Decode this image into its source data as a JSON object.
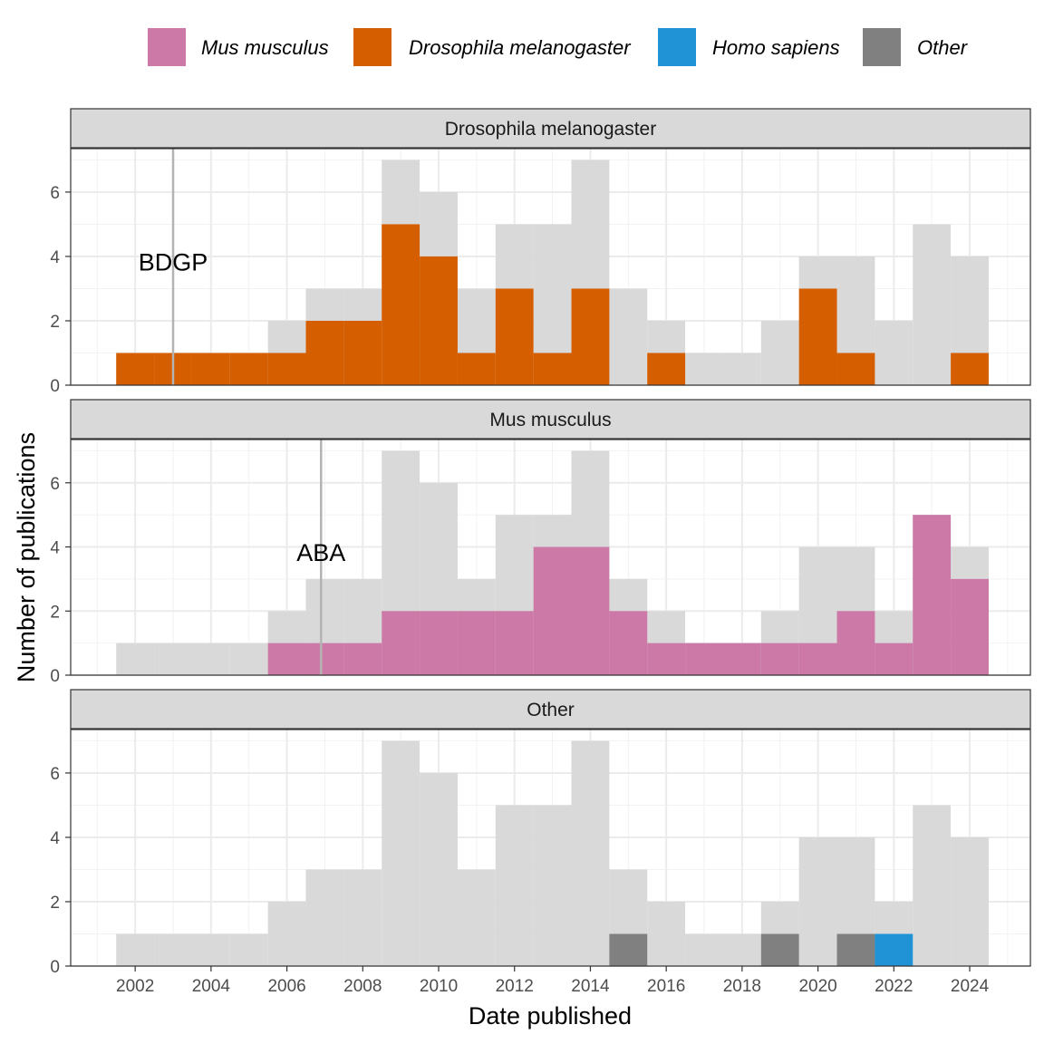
{
  "chart_data": {
    "type": "bar",
    "subtype": "faceted histogram",
    "xlabel": "Date published",
    "ylabel": "Number of publications",
    "xlim": [
      2000.3,
      2025.6
    ],
    "ylim": [
      0,
      7.35
    ],
    "x_ticks": [
      2002,
      2004,
      2006,
      2008,
      2010,
      2012,
      2014,
      2016,
      2018,
      2020,
      2022,
      2024
    ],
    "y_ticks": [
      0,
      2,
      4,
      6
    ],
    "grid": true,
    "legend_position": "top",
    "legend": [
      {
        "label": "Mus musculus",
        "color": "#CC79A7"
      },
      {
        "label": "Drosophila melanogaster",
        "color": "#D55E00"
      },
      {
        "label": "Homo sapiens",
        "color": "#1F93D6"
      },
      {
        "label": "Other",
        "color": "#808080"
      }
    ],
    "background_series": {
      "color": "#D9D9D9",
      "years": [
        2002,
        2003,
        2004,
        2005,
        2006,
        2007,
        2008,
        2009,
        2010,
        2011,
        2012,
        2013,
        2014,
        2015,
        2016,
        2017,
        2018,
        2019,
        2020,
        2021,
        2022,
        2023,
        2024
      ],
      "values": [
        1,
        1,
        1,
        1,
        2,
        3,
        3,
        7,
        6,
        3,
        5,
        5,
        7,
        3,
        2,
        1,
        1,
        2,
        4,
        4,
        2,
        5,
        4
      ]
    },
    "panels": [
      {
        "strip": "Drosophila melanogaster",
        "annotation": {
          "label": "BDGP",
          "x": 2003
        },
        "series": [
          {
            "name": "Drosophila melanogaster",
            "color": "#D55E00",
            "years": [
              2002,
              2003,
              2004,
              2005,
              2006,
              2007,
              2008,
              2009,
              2010,
              2011,
              2012,
              2013,
              2014,
              2016,
              2020,
              2021,
              2024
            ],
            "values": [
              1,
              1,
              1,
              1,
              1,
              2,
              2,
              5,
              4,
              1,
              3,
              1,
              3,
              1,
              3,
              1,
              1
            ]
          }
        ]
      },
      {
        "strip": "Mus musculus",
        "annotation": {
          "label": "ABA",
          "x": 2006.9
        },
        "series": [
          {
            "name": "Mus musculus",
            "color": "#CC79A7",
            "years": [
              2006,
              2007,
              2008,
              2009,
              2010,
              2011,
              2012,
              2013,
              2014,
              2015,
              2016,
              2017,
              2018,
              2019,
              2020,
              2021,
              2022,
              2023,
              2024
            ],
            "values": [
              1,
              1,
              1,
              2,
              2,
              2,
              2,
              4,
              4,
              2,
              1,
              1,
              1,
              1,
              1,
              2,
              1,
              5,
              3
            ]
          }
        ]
      },
      {
        "strip": "Other",
        "annotation": null,
        "series": [
          {
            "name": "Other",
            "color": "#808080",
            "years": [
              2015,
              2019,
              2021
            ],
            "values": [
              1,
              1,
              1
            ]
          },
          {
            "name": "Homo sapiens",
            "color": "#1F93D6",
            "years": [
              2022
            ],
            "values": [
              1
            ]
          }
        ]
      }
    ]
  }
}
